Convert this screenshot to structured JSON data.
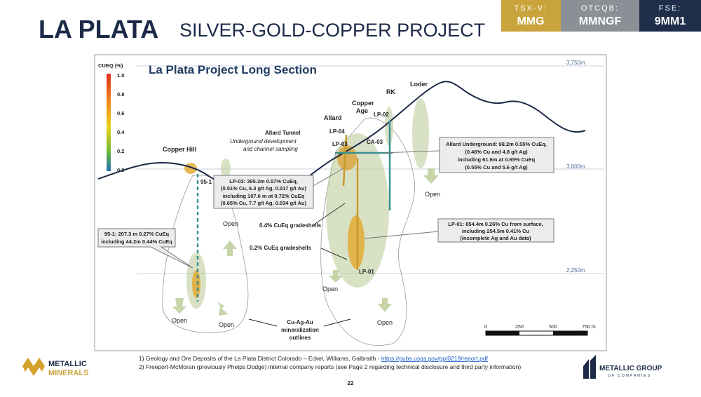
{
  "header": {
    "title_bold": "LA PLATA",
    "title_rest": "SILVER-GOLD-COPPER PROJECT"
  },
  "tickers": [
    {
      "exchange": "TSX-V:",
      "symbol": "MMG"
    },
    {
      "exchange": "OTCQB:",
      "symbol": "MMNGF"
    },
    {
      "exchange": "FSE:",
      "symbol": "9MM1"
    }
  ],
  "section": {
    "title": "La Plata Project Long Section",
    "legend_label": "CUEQ (%)",
    "legend_ticks": [
      "1.0",
      "0.8",
      "0.6",
      "0.4",
      "0.2",
      "0.0"
    ],
    "elevations": [
      "3,750m",
      "3,000m",
      "2,250m"
    ],
    "places": [
      "Copper Hill",
      "Allard",
      "Copper Age",
      "RK",
      "Loder"
    ],
    "copper_age_lines": [
      "Copper",
      "Age"
    ],
    "holes": [
      "95-1",
      "LP-04",
      "LP-03",
      "CA-03",
      "LP-02",
      "LP-01"
    ],
    "tunnel": {
      "title": "Allard Tunnel",
      "lines": [
        "Underground development",
        "and channel sampling"
      ]
    },
    "callouts": [
      {
        "lines": [
          "Allard Underground: 98.2m 0.55% CuEq,",
          "(0.46% Cu and 4.8 g/t Ag)",
          "including 61.6m at 0.65% CuEq",
          "(0.55% Cu and 5.6 g/t Ag)"
        ]
      },
      {
        "lines": [
          "LP-03: 395.3m 0.57% CuEq,",
          "(0.51% Cu, 6.3 g/t Ag, 0.017 g/t Au)",
          "including 107.6 m at 0.72% CuEq",
          "(0.65% Cu, 7.7 g/t Ag, 0.034 g/t Au)"
        ]
      },
      {
        "lines": [
          "LP-01: 854.4m 0.26% Cu from surface,",
          "including 254.5m 0.41% Cu",
          "(incomplete Ag and Au data)"
        ]
      },
      {
        "lines": [
          "95-1: 207.3 m 0.27% CuEq",
          "including 44.2m 0.44% CuEq"
        ]
      }
    ],
    "gradeshells": [
      "0.4% CuEq gradeshells",
      "0.2% CuEq gradeshells"
    ],
    "open": "Open",
    "outlines": [
      "Cu-Ag-Au",
      "mineralization",
      "outlines"
    ],
    "scale": [
      "0",
      "250",
      "500",
      "750 m"
    ]
  },
  "footnotes": [
    {
      "text": "1) Geology and Ore Deposits of the La Plata District Colorado – Eckel, Williams, Galbraith - ",
      "link": "https://pubs.usgs.gov/pp/0219/report.pdf"
    },
    {
      "text": "2) Freeport-McMoran (previously Phelps Dodge) internal company reports (see Page 2 regarding technical disclosure and third party information)"
    }
  ],
  "page_number": "22",
  "logos": {
    "left": [
      "METALLIC",
      "MINERALS"
    ],
    "right": [
      "METALLIC GROUP",
      "OF COMPANIES"
    ]
  }
}
